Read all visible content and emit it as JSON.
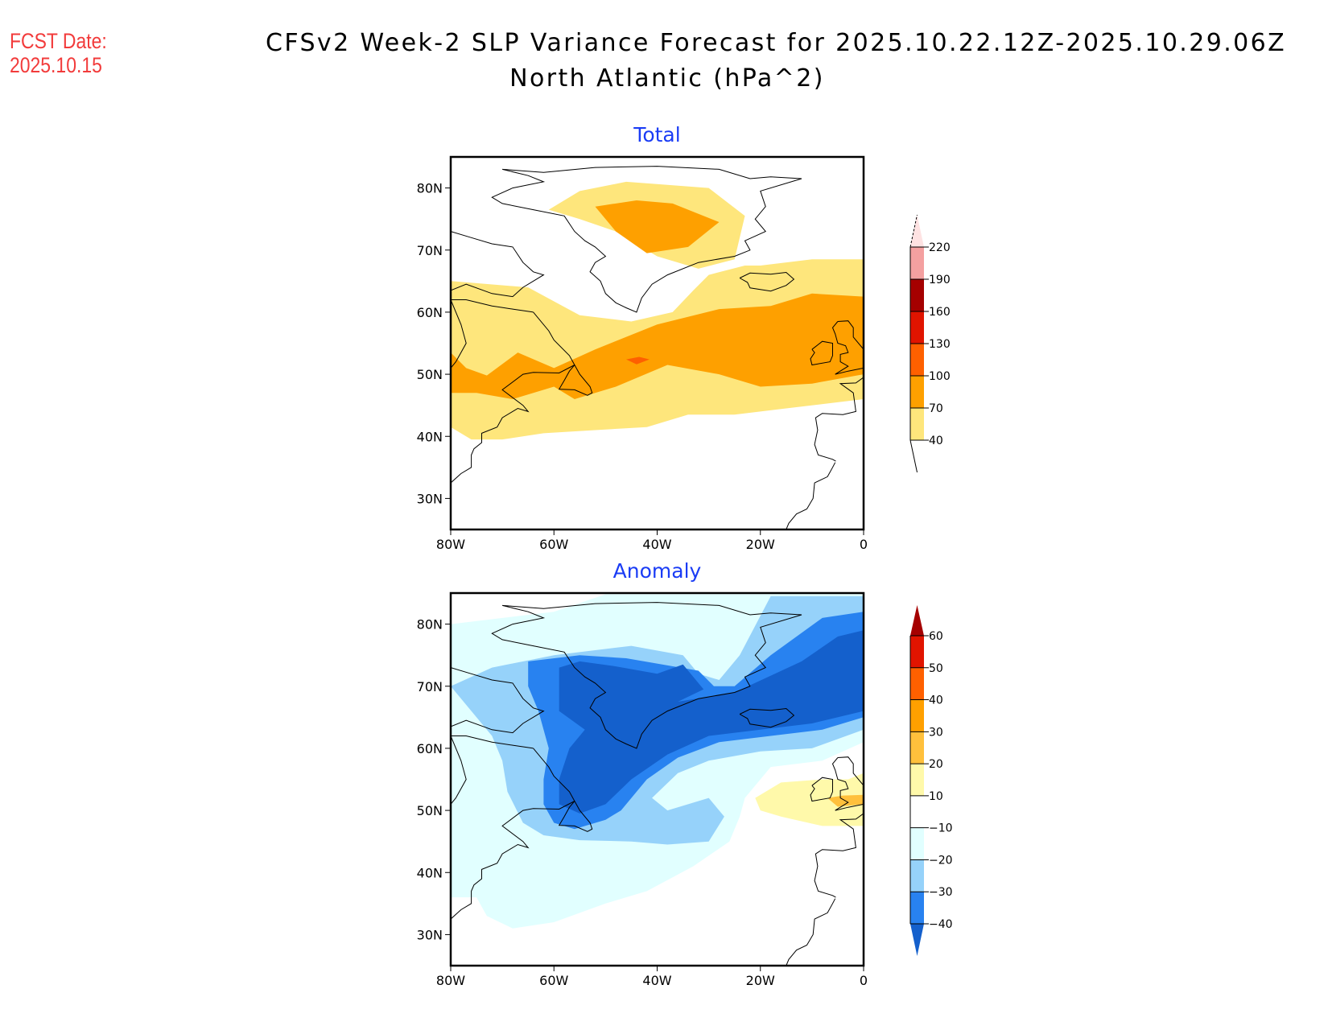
{
  "header": {
    "fcst_label": "FCST Date:",
    "fcst_date": "2025.10.15",
    "title_line1": "CFSv2 Week-2 SLP Variance Forecast for 2025.10.22.12Z-2025.10.29.06Z",
    "title_line2": "North Atlantic (hPa^2)"
  },
  "chart_data": [
    {
      "type": "heatmap",
      "title": "Total",
      "units": "hPa^2",
      "region": "North Atlantic",
      "x_axis": {
        "range": [
          -80,
          0
        ],
        "ticks": [
          -80,
          -60,
          -40,
          -20,
          0
        ],
        "tick_labels": [
          "80W",
          "60W",
          "40W",
          "20W",
          "0"
        ]
      },
      "y_axis": {
        "range": [
          25,
          85
        ],
        "ticks": [
          30,
          40,
          50,
          60,
          70,
          80
        ],
        "tick_labels": [
          "30N",
          "40N",
          "50N",
          "60N",
          "70N",
          "80N"
        ]
      },
      "colorbar": {
        "levels": [
          40,
          70,
          100,
          130,
          160,
          190,
          220
        ],
        "level_labels": [
          "40",
          "70",
          "100",
          "130",
          "160",
          "190",
          "220"
        ],
        "colors": [
          "#ffffff",
          "#fee67c",
          "#fea000",
          "#fe6000",
          "#e01400",
          "#a50000",
          "#f4a0a0",
          "#fee2e2"
        ],
        "extend": "both"
      },
      "contours": [
        {
          "level": "40-70",
          "color": "#fee67c",
          "lonlat": [
            [
              -80,
              65
            ],
            [
              -65,
              64
            ],
            [
              -55,
              59.5
            ],
            [
              -45,
              58.5
            ],
            [
              -37,
              60
            ],
            [
              -33,
              63.5
            ],
            [
              -30,
              66
            ],
            [
              -23,
              67.5
            ],
            [
              -20,
              67.5
            ],
            [
              -10,
              68.5
            ],
            [
              0,
              68.5
            ],
            [
              0,
              46
            ],
            [
              -15,
              44.5
            ],
            [
              -25,
              43.5
            ],
            [
              -34,
              43.5
            ],
            [
              -42,
              41.5
            ],
            [
              -52,
              41
            ],
            [
              -62,
              40.5
            ],
            [
              -70,
              39.5
            ],
            [
              -76,
              39.5
            ],
            [
              -80,
              41.5
            ]
          ]
        },
        {
          "level": "40-70 north",
          "color": "#fee67c",
          "lonlat": [
            [
              -61,
              76.5
            ],
            [
              -55,
              79.5
            ],
            [
              -46,
              81
            ],
            [
              -30,
              80
            ],
            [
              -23,
              75.5
            ],
            [
              -25,
              68.5
            ],
            [
              -32,
              67
            ],
            [
              -40,
              69
            ],
            [
              -48,
              73
            ],
            [
              -55,
              75
            ]
          ]
        },
        {
          "level": "70-100",
          "color": "#fea000",
          "lonlat": [
            [
              -80,
              53.5
            ],
            [
              -77,
              51
            ],
            [
              -73,
              49.8
            ],
            [
              -67,
              53.5
            ],
            [
              -60,
              51
            ],
            [
              -52,
              54
            ],
            [
              -40,
              58
            ],
            [
              -28,
              60.5
            ],
            [
              -18,
              61
            ],
            [
              -10,
              63
            ],
            [
              0,
              62.5
            ],
            [
              0,
              50
            ],
            [
              -10,
              48.5
            ],
            [
              -20,
              48
            ],
            [
              -28,
              50
            ],
            [
              -38,
              51.5
            ],
            [
              -48,
              48
            ],
            [
              -56,
              46
            ],
            [
              -60,
              48
            ],
            [
              -68,
              46
            ],
            [
              -75,
              47
            ],
            [
              -80,
              47
            ]
          ]
        },
        {
          "level": "70-100 north",
          "color": "#fea000",
          "lonlat": [
            [
              -52,
              77
            ],
            [
              -44,
              78
            ],
            [
              -37,
              77.5
            ],
            [
              -28,
              74.5
            ],
            [
              -34,
              70.5
            ],
            [
              -42,
              69.5
            ],
            [
              -48,
              73
            ]
          ]
        },
        {
          "level": "100-130",
          "color": "#fe6000",
          "lonlat": [
            [
              -46,
              52.4
            ],
            [
              -43.5,
              52.8
            ],
            [
              -41.5,
              52.4
            ],
            [
              -44,
              51.6
            ]
          ]
        }
      ],
      "features": [
        "max ~70-100 over southern Greenland Sea (~43W,75N)",
        "band 70-100 from Newfoundland to British Isles",
        "small 100-130 patch near 45W,52N"
      ]
    },
    {
      "type": "heatmap",
      "title": "Anomaly",
      "units": "hPa^2",
      "region": "North Atlantic",
      "x_axis": {
        "range": [
          -80,
          0
        ],
        "ticks": [
          -80,
          -60,
          -40,
          -20,
          0
        ],
        "tick_labels": [
          "80W",
          "60W",
          "40W",
          "20W",
          "0"
        ]
      },
      "y_axis": {
        "range": [
          25,
          85
        ],
        "ticks": [
          30,
          40,
          50,
          60,
          70,
          80
        ],
        "tick_labels": [
          "30N",
          "40N",
          "50N",
          "60N",
          "70N",
          "80N"
        ]
      },
      "colorbar": {
        "levels": [
          -40,
          -30,
          -20,
          -10,
          10,
          20,
          30,
          40,
          50,
          60
        ],
        "level_labels": [
          "-40",
          "-30",
          "-20",
          "-10",
          "10",
          "20",
          "30",
          "40",
          "50",
          "60"
        ],
        "colors": [
          "#1460cc",
          "#2882f0",
          "#96d2fa",
          "#e1ffff",
          "#ffffff",
          "#fff9aa",
          "#ffc03c",
          "#ffa000",
          "#ff6000",
          "#e11400",
          "#a50000"
        ],
        "extend": "both"
      },
      "contours": [
        {
          "level": "-20 to -10",
          "color": "#e1ffff",
          "lonlat": [
            [
              -80,
              80
            ],
            [
              -60,
              82
            ],
            [
              -50,
              84.8
            ],
            [
              -18,
              84.8
            ],
            [
              -10,
              84.8
            ],
            [
              0,
              84.8
            ],
            [
              0,
              61
            ],
            [
              -8,
              58
            ],
            [
              -18,
              57
            ],
            [
              -23,
              52
            ],
            [
              -24,
              49
            ],
            [
              -26,
              45
            ],
            [
              -33,
              41
            ],
            [
              -42,
              37
            ],
            [
              -50,
              35
            ],
            [
              -60,
              32
            ],
            [
              -68,
              31
            ],
            [
              -73,
              33
            ],
            [
              -75,
              36
            ],
            [
              -80,
              36
            ]
          ]
        },
        {
          "level": "-30 to -20",
          "color": "#96d2fa",
          "lonlat": [
            [
              -80,
              70
            ],
            [
              -72,
              73
            ],
            [
              -60,
              75
            ],
            [
              -45,
              76.5
            ],
            [
              -35,
              75
            ],
            [
              -32,
              72
            ],
            [
              -28,
              71
            ],
            [
              -24,
              75
            ],
            [
              -18,
              84.5
            ],
            [
              0,
              84.5
            ],
            [
              0,
              63
            ],
            [
              -10,
              60
            ],
            [
              -20,
              59.5
            ],
            [
              -30,
              58
            ],
            [
              -36,
              56
            ],
            [
              -41,
              52
            ],
            [
              -38,
              50
            ],
            [
              -30,
              52
            ],
            [
              -27,
              49
            ],
            [
              -30,
              45
            ],
            [
              -38,
              44.5
            ],
            [
              -45,
              45
            ],
            [
              -55,
              45.2
            ],
            [
              -62,
              46
            ],
            [
              -66,
              48
            ],
            [
              -69,
              53
            ],
            [
              -70,
              58
            ],
            [
              -72,
              62
            ],
            [
              -77,
              67
            ]
          ]
        },
        {
          "level": "-40 to -30",
          "color": "#2882f0",
          "lonlat": [
            [
              -65,
              74
            ],
            [
              -55,
              75
            ],
            [
              -46,
              74.5
            ],
            [
              -32,
              72.5
            ],
            [
              -29,
              70
            ],
            [
              -25,
              70
            ],
            [
              -18,
              75
            ],
            [
              -8,
              81
            ],
            [
              0,
              82
            ],
            [
              0,
              65
            ],
            [
              -8,
              63
            ],
            [
              -18,
              62
            ],
            [
              -28,
              61
            ],
            [
              -36,
              58.5
            ],
            [
              -42,
              55
            ],
            [
              -47,
              50
            ],
            [
              -50,
              48.5
            ],
            [
              -56,
              47
            ],
            [
              -60,
              48
            ],
            [
              -62,
              51
            ],
            [
              -62,
              55
            ],
            [
              -61,
              60
            ],
            [
              -63,
              66
            ],
            [
              -65,
              70
            ]
          ]
        },
        {
          "level": "< -40",
          "color": "#1460cc",
          "lonlat": [
            [
              -59,
              73
            ],
            [
              -55,
              74
            ],
            [
              -48,
              73.2
            ],
            [
              -40,
              72
            ],
            [
              -35,
              73.5
            ],
            [
              -31,
              69.5
            ],
            [
              -36,
              67.5
            ],
            [
              -25,
              69
            ],
            [
              -12,
              74
            ],
            [
              -5,
              78
            ],
            [
              0,
              79
            ],
            [
              0,
              66
            ],
            [
              -10,
              64
            ],
            [
              -20,
              63
            ],
            [
              -30,
              62
            ],
            [
              -38,
              59
            ],
            [
              -45,
              55
            ],
            [
              -50,
              51
            ],
            [
              -55,
              49.5
            ],
            [
              -59,
              51
            ],
            [
              -59,
              55
            ],
            [
              -57,
              60
            ],
            [
              -54,
              63
            ],
            [
              -59,
              66
            ]
          ]
        },
        {
          "level": "10 to 20",
          "color": "#fff9aa",
          "lonlat": [
            [
              -21,
              52
            ],
            [
              -16,
              54.5
            ],
            [
              -8,
              55
            ],
            [
              -3,
              55
            ],
            [
              0,
              56
            ],
            [
              0,
              47.5
            ],
            [
              -8,
              47.5
            ],
            [
              -16,
              49
            ],
            [
              -20,
              50
            ]
          ]
        },
        {
          "level": "20 to 30",
          "color": "#ffc03c",
          "lonlat": [
            [
              -7,
              52
            ],
            [
              -4,
              52.4
            ],
            [
              0,
              52.5
            ],
            [
              0,
              51
            ],
            [
              -5,
              50.6
            ]
          ]
        }
      ],
      "features": [
        "strong negative anomaly (< -40) over Greenland, Labrador Sea and Iceland-Norwegian Sea",
        "weak positive anomaly (10-30) over British Isles"
      ]
    }
  ]
}
